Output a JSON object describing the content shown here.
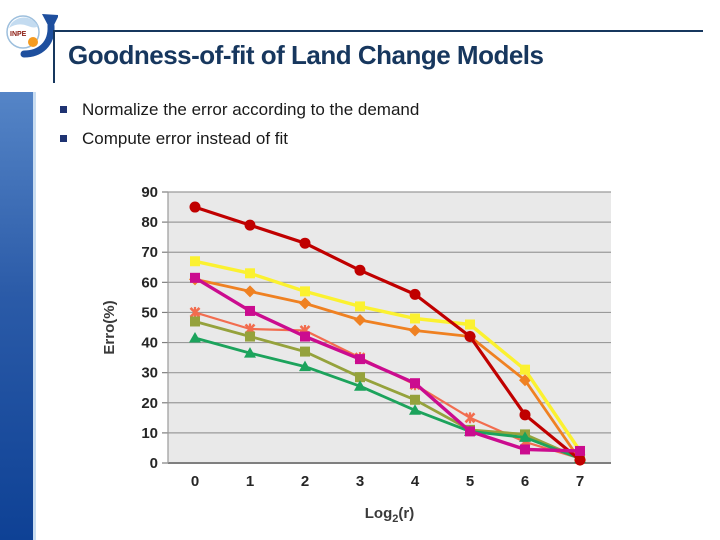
{
  "slide": {
    "title": "Goodness-of-fit of Land Change Models",
    "bullets": [
      "Normalize the error according to the demand",
      "Compute error instead of fit"
    ],
    "accent_color": "#17375E",
    "logo_text": "INPE"
  },
  "chart_data": {
    "type": "line",
    "x": [
      0,
      1,
      2,
      3,
      4,
      5,
      6,
      7
    ],
    "xlabel_base": "Log",
    "xlabel_sub": "2",
    "xlabel_rest": "(r)",
    "ylabel": "Erro(%)",
    "ylim": [
      0,
      90
    ],
    "ytick_step": 10,
    "grid": true,
    "legend": "none",
    "plot_bg": "#E9E9E9",
    "gridline_color": "#9A9A9A",
    "axis_line_color": "#7F7F7F",
    "series": [
      {
        "name": "salmon-x",
        "marker": "x",
        "color": "#F26D4F",
        "width": 2.2,
        "values": [
          50,
          44.5,
          44,
          35,
          26,
          15,
          7,
          1.5
        ]
      },
      {
        "name": "olive-square",
        "marker": "square",
        "color": "#95A23C",
        "width": 2.8,
        "values": [
          47,
          42,
          37,
          28.5,
          21,
          11,
          9.5,
          1.5
        ]
      },
      {
        "name": "green-triangle",
        "marker": "triangle",
        "color": "#1CA35C",
        "width": 2.8,
        "values": [
          41.5,
          36.5,
          32,
          25.5,
          17.5,
          10.5,
          8.5,
          1.5
        ]
      },
      {
        "name": "orange-diamond",
        "marker": "diamond",
        "color": "#EF8122",
        "width": 2.8,
        "values": [
          61,
          57,
          53,
          47.5,
          44,
          42,
          27.5,
          1
        ]
      },
      {
        "name": "yellow-square",
        "marker": "square",
        "color": "#FBF130",
        "width": 3.4,
        "values": [
          67,
          63,
          57,
          52,
          48,
          46,
          31,
          4
        ]
      },
      {
        "name": "dark-red-circle",
        "marker": "circle",
        "color": "#C00000",
        "width": 3.2,
        "values": [
          85,
          79,
          73,
          64,
          56,
          42,
          16,
          1
        ]
      },
      {
        "name": "magenta-square",
        "marker": "square",
        "color": "#CB0C8F",
        "width": 3.4,
        "values": [
          61.5,
          50.5,
          42,
          34.5,
          26.5,
          10.5,
          4.5,
          4
        ]
      }
    ]
  }
}
